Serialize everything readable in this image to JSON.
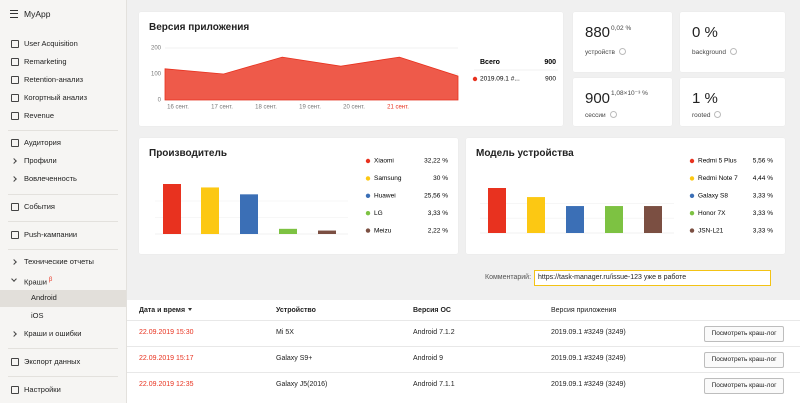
{
  "sidebar": {
    "app": "MyApp",
    "badge": "β",
    "items": [
      {
        "label": "User Acquisition"
      },
      {
        "label": "Remarketing"
      },
      {
        "label": "Retention-анализ"
      },
      {
        "label": "Когортный анализ"
      },
      {
        "label": "Revenue"
      },
      {
        "label": "Аудитория"
      },
      {
        "label": "Профили"
      },
      {
        "label": "Вовлеченность"
      },
      {
        "label": "События"
      },
      {
        "label": "Push-кампании"
      },
      {
        "label": "Технические отчеты"
      },
      {
        "label": "Краши"
      },
      {
        "label": "Android"
      },
      {
        "label": "iOS"
      },
      {
        "label": "Краши и ошибки"
      },
      {
        "label": "Экспорт данных"
      },
      {
        "label": "Настройки"
      }
    ]
  },
  "version_card": {
    "title": "Версия приложения",
    "chart": {
      "type": "area",
      "categories": [
        "16 сент.",
        "17 сент.",
        "18 сент.",
        "19 сент.",
        "20 сент.",
        "21 сент."
      ],
      "values": [
        120,
        100,
        165,
        130,
        165,
        92
      ],
      "color": "#ee5a4a",
      "ylim": [
        0,
        200
      ],
      "yticks": [
        0,
        100,
        200
      ],
      "grid": true
    },
    "legend": {
      "total_label": "Всего",
      "total_value": 900,
      "series_name": "2019.09.1 #...",
      "series_value": 900,
      "series_color": "#e8321f"
    }
  },
  "metrics": [
    {
      "value": 880,
      "note": "0,02 %",
      "label": "устройств"
    },
    {
      "value": "0 %",
      "label": "background"
    },
    {
      "value": 900,
      "note": "1,08×10⁻³ %",
      "label": "сессии"
    },
    {
      "value": "1 %",
      "label": "rooted"
    }
  ],
  "manufacturer_card": {
    "title": "Производитель",
    "chart": {
      "type": "bar",
      "categories": [
        "Xiaomi",
        "Samsung",
        "Huawei",
        "LG",
        "Meizu"
      ],
      "values": [
        32.22,
        30,
        25.56,
        3.33,
        2.22
      ],
      "value_labels": [
        "32,22 %",
        "30 %",
        "25,56 %",
        "3,33 %",
        "2,22 %"
      ],
      "colors": [
        "#e8321f",
        "#fcc813",
        "#3b6fb6",
        "#7dc242",
        "#7b4f42"
      ]
    }
  },
  "model_card": {
    "title": "Модель устройства",
    "chart": {
      "type": "bar",
      "categories": [
        "Redmi 5 Plus",
        "Redmi Note 7",
        "Galaxy S8",
        "Honor 7X",
        "JSN-L21"
      ],
      "values": [
        5.56,
        4.44,
        3.33,
        3.33,
        3.33
      ],
      "value_labels": [
        "5,56 %",
        "4,44 %",
        "3,33 %",
        "3,33 %",
        "3,33 %"
      ],
      "colors": [
        "#e8321f",
        "#fcc813",
        "#3b6fb6",
        "#7dc242",
        "#7b4f42"
      ]
    }
  },
  "comment": {
    "label": "Комментарий:",
    "value": "https://task-manager.ru/issue-123 уже в работе"
  },
  "table": {
    "columns": [
      "Дата и время",
      "Устройство",
      "Версия ОС",
      "Версия приложения"
    ],
    "action": "Посмотреть краш-лог",
    "rows": [
      [
        "22.09.2019 15:30",
        "Mi 5X",
        "Android 7.1.2",
        "2019.09.1 #3249 (3249)"
      ],
      [
        "22.09.2019 15:17",
        "Galaxy S9+",
        "Android 9",
        "2019.09.1 #3249 (3249)"
      ],
      [
        "22.09.2019 12:35",
        "Galaxy J5(2016)",
        "Android 7.1.1",
        "2019.09.1 #3249 (3249)"
      ]
    ]
  }
}
